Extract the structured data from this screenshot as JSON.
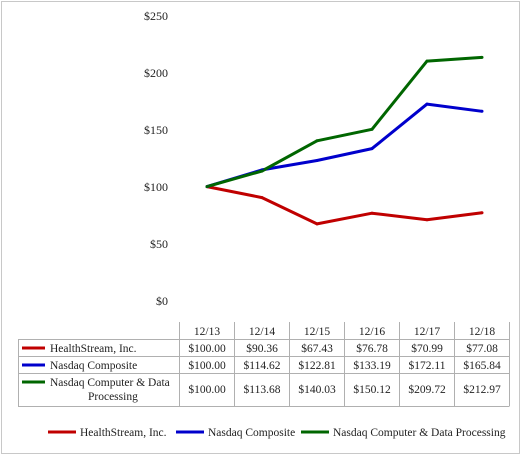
{
  "chart_data": {
    "type": "line",
    "categories": [
      "12/13",
      "12/14",
      "12/15",
      "12/16",
      "12/17",
      "12/18"
    ],
    "ylim": [
      0,
      250
    ],
    "yticks": [
      "$0",
      "$50",
      "$100",
      "$150",
      "$200",
      "$250"
    ],
    "ytick_values": [
      0,
      50,
      100,
      150,
      200,
      250
    ],
    "grid": false,
    "legend_position": "bottom",
    "series": [
      {
        "name": "HealthStream, Inc.",
        "color": "#c00000",
        "values": [
          100.0,
          90.36,
          67.43,
          76.78,
          70.99,
          77.08
        ],
        "labels": [
          "$100.00",
          "$90.36",
          "$67.43",
          "$76.78",
          "$70.99",
          "$77.08"
        ]
      },
      {
        "name": "Nasdaq Composite",
        "color": "#0000cc",
        "values": [
          100.0,
          114.62,
          122.81,
          133.19,
          172.11,
          165.84
        ],
        "labels": [
          "$100.00",
          "$114.62",
          "$122.81",
          "$133.19",
          "$172.11",
          "$165.84"
        ]
      },
      {
        "name": "Nasdaq Computer & Data Processing",
        "name_lines": [
          "Nasdaq Computer & Data",
          "Processing"
        ],
        "color": "#006600",
        "values": [
          100.0,
          113.68,
          140.03,
          150.12,
          209.72,
          212.97
        ],
        "labels": [
          "$100.00",
          "$113.68",
          "$140.03",
          "$150.12",
          "$209.72",
          "$212.97"
        ]
      }
    ]
  }
}
